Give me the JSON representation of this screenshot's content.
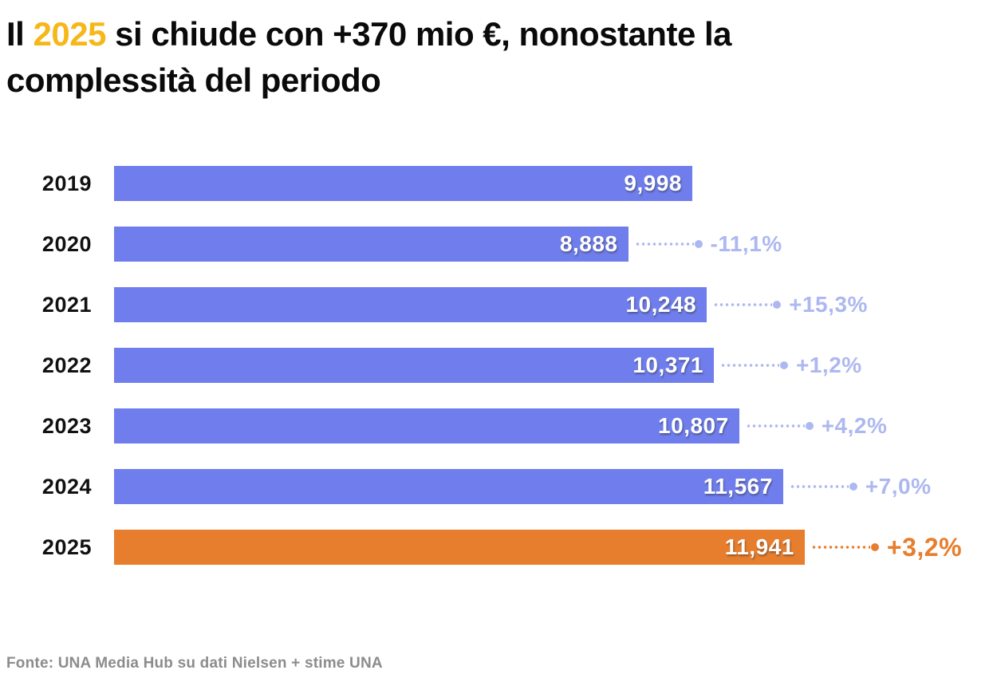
{
  "title": {
    "prefix": "Il ",
    "highlight": "2025",
    "suffix": " si chiude con +370 mio €, nonostante la complessità del periodo"
  },
  "source": "Fonte: UNA Media Hub su dati Nielsen + stime UNA",
  "colors": {
    "bar": "#6F7EEC",
    "highlight": "#E77E2E",
    "pct_label": "#AEB8F0",
    "title_highlight": "#F6B719",
    "title_text": "#0A0A0A",
    "year_text": "#111111",
    "value_text": "#FFFFFF",
    "source_text": "#8C8C8C"
  },
  "chart_data": {
    "type": "bar",
    "orientation": "horizontal",
    "title": "Il 2025 si chiude con +370 mio €, nonostante la complessità del periodo",
    "categories": [
      "2019",
      "2020",
      "2021",
      "2022",
      "2023",
      "2024",
      "2025"
    ],
    "values": [
      9998,
      8888,
      10248,
      10371,
      10807,
      11567,
      11941
    ],
    "value_labels": [
      "9,998",
      "8,888",
      "10,248",
      "10,371",
      "10,807",
      "11,567",
      "11,941"
    ],
    "pct_change_labels": [
      "",
      "-11,1%",
      "+15,3%",
      "+1,2%",
      "+4,2%",
      "+7,0%",
      "+3,2%"
    ],
    "highlight_index": 6,
    "xlim": [
      0,
      12000
    ],
    "grid": false,
    "legend": "none",
    "value_axis_visible": false
  }
}
